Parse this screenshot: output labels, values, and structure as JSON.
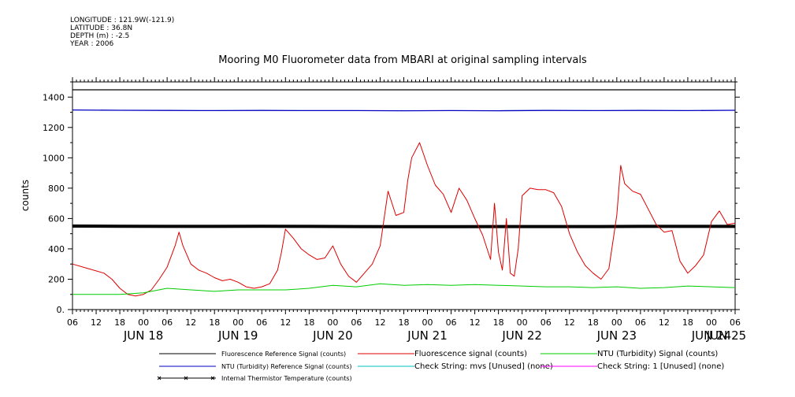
{
  "header": {
    "longitude": "LONGITUDE : 121.9W(-121.9)",
    "latitude": "LATITUDE : 36.8N",
    "depth": "DEPTH (m) : -2.5",
    "year": "YEAR : 2006"
  },
  "chart_data": {
    "type": "line",
    "title": "Mooring M0 Fluorometer data from MBARI at original sampling intervals",
    "ylabel": "counts",
    "xlabel": "",
    "ylim": [
      0,
      1500
    ],
    "y_ticks": [
      0,
      200,
      400,
      600,
      800,
      1000,
      1200,
      1400
    ],
    "y_tick_labels": [
      "0.",
      "200",
      "400",
      "600",
      "800",
      "1000",
      "1200",
      "1400"
    ],
    "x_range_hours": [
      0,
      168
    ],
    "x_tick_hours": [
      0,
      6,
      12,
      18,
      24,
      30,
      36,
      42,
      48,
      54,
      60,
      66,
      72,
      78,
      84,
      90,
      96,
      102,
      108,
      114,
      120,
      126,
      132,
      138,
      144,
      150,
      156,
      162,
      168
    ],
    "x_tick_labels": [
      "06",
      "12",
      "18",
      "00",
      "06",
      "12",
      "18",
      "00",
      "06",
      "12",
      "18",
      "00",
      "06",
      "12",
      "18",
      "00",
      "06",
      "12",
      "18",
      "00",
      "06",
      "12",
      "18",
      "00",
      "06",
      "12",
      "18",
      "00",
      "06"
    ],
    "day_labels": [
      "JUN 18",
      "JUN 19",
      "JUN 20",
      "JUN 21",
      "JUN 22",
      "JUN 23",
      "JUN 24",
      "JUN 25"
    ],
    "day_label_hours": [
      18,
      42,
      66,
      90,
      114,
      138,
      162,
      168
    ],
    "grid": false,
    "legend_position": "bottom",
    "series": [
      {
        "name": "Fluorescence Reference Signal (counts)",
        "color": "#000000",
        "legend_col": 0,
        "legend_row": 0,
        "drawn": true,
        "width": 1.3,
        "x": [
          0,
          168
        ],
        "y": [
          1448,
          1448
        ]
      },
      {
        "name": "NTU (Turbidity) Reference Signal (counts)",
        "color": "#0000c0",
        "legend_col": 0,
        "legend_row": 1,
        "drawn": true,
        "width": 1.3,
        "x": [
          0,
          12,
          24,
          36,
          48,
          60,
          72,
          84,
          96,
          108,
          120,
          132,
          144,
          156,
          168
        ],
        "y": [
          1315,
          1313,
          1312,
          1311,
          1312,
          1311,
          1311,
          1310,
          1311,
          1310,
          1312,
          1311,
          1312,
          1311,
          1313
        ]
      },
      {
        "name": "Internal Thermistor Temperature (counts)",
        "color": "#000000",
        "legend_col": 0,
        "legend_row": 2,
        "drawn": true,
        "width": 4,
        "marker": "x",
        "x": [
          0,
          12,
          24,
          36,
          48,
          60,
          72,
          84,
          96,
          108,
          120,
          132,
          144,
          156,
          168
        ],
        "y": [
          550,
          549,
          548,
          548,
          549,
          548,
          547,
          546,
          546,
          547,
          547,
          547,
          548,
          548,
          548
        ]
      },
      {
        "name": "Fluorescence signal (counts)",
        "color": "#dd0000",
        "legend_col": 1,
        "legend_row": 0,
        "drawn": true,
        "width": 1,
        "x": [
          0,
          4,
          8,
          10,
          12,
          14,
          16,
          18,
          20,
          22,
          24,
          26,
          27,
          28,
          30,
          32,
          34,
          36,
          38,
          40,
          42,
          44,
          46,
          48,
          50,
          52,
          53,
          54,
          56,
          58,
          60,
          62,
          64,
          66,
          68,
          70,
          72,
          74,
          76,
          78,
          80,
          82,
          84,
          85,
          86,
          88,
          90,
          92,
          94,
          96,
          98,
          100,
          102,
          104,
          106,
          107,
          108,
          109,
          110,
          111,
          112,
          113,
          114,
          116,
          118,
          120,
          122,
          124,
          126,
          128,
          130,
          132,
          134,
          136,
          138,
          139,
          140,
          142,
          144,
          146,
          148,
          150,
          152,
          154,
          156,
          158,
          160,
          162,
          164,
          166,
          168
        ],
        "y": [
          300,
          270,
          240,
          200,
          140,
          100,
          90,
          100,
          130,
          200,
          280,
          420,
          510,
          420,
          300,
          260,
          240,
          210,
          190,
          200,
          180,
          150,
          140,
          150,
          170,
          260,
          380,
          530,
          470,
          400,
          360,
          330,
          340,
          420,
          300,
          220,
          180,
          240,
          300,
          420,
          780,
          620,
          640,
          850,
          1000,
          1100,
          950,
          820,
          760,
          640,
          800,
          720,
          600,
          490,
          330,
          700,
          380,
          260,
          600,
          240,
          220,
          400,
          750,
          800,
          790,
          790,
          770,
          680,
          500,
          380,
          290,
          240,
          200,
          270,
          620,
          950,
          830,
          780,
          760,
          660,
          560,
          510,
          520,
          320,
          240,
          290,
          360,
          580,
          650,
          560,
          570
        ]
      },
      {
        "name": "NTU (Turbidity) Signal (counts)",
        "color": "#00cc00",
        "legend_col": 2,
        "legend_row": 0,
        "drawn": true,
        "width": 1,
        "x": [
          0,
          6,
          12,
          18,
          24,
          30,
          36,
          42,
          48,
          54,
          60,
          66,
          72,
          78,
          84,
          90,
          96,
          102,
          108,
          114,
          120,
          126,
          132,
          138,
          144,
          150,
          156,
          162,
          168
        ],
        "y": [
          100,
          100,
          100,
          110,
          140,
          130,
          120,
          130,
          130,
          130,
          140,
          160,
          150,
          170,
          160,
          165,
          160,
          165,
          160,
          155,
          150,
          150,
          145,
          150,
          140,
          145,
          155,
          150,
          145
        ]
      },
      {
        "name": "Check String: mvs [Unused] (none)",
        "color": "#00c0c0",
        "legend_col": 1,
        "legend_row": 1,
        "drawn": false
      },
      {
        "name": "Check String: 1 [Unused] (none)",
        "color": "#ff00ff",
        "legend_col": 2,
        "legend_row": 1,
        "drawn": false
      }
    ]
  }
}
